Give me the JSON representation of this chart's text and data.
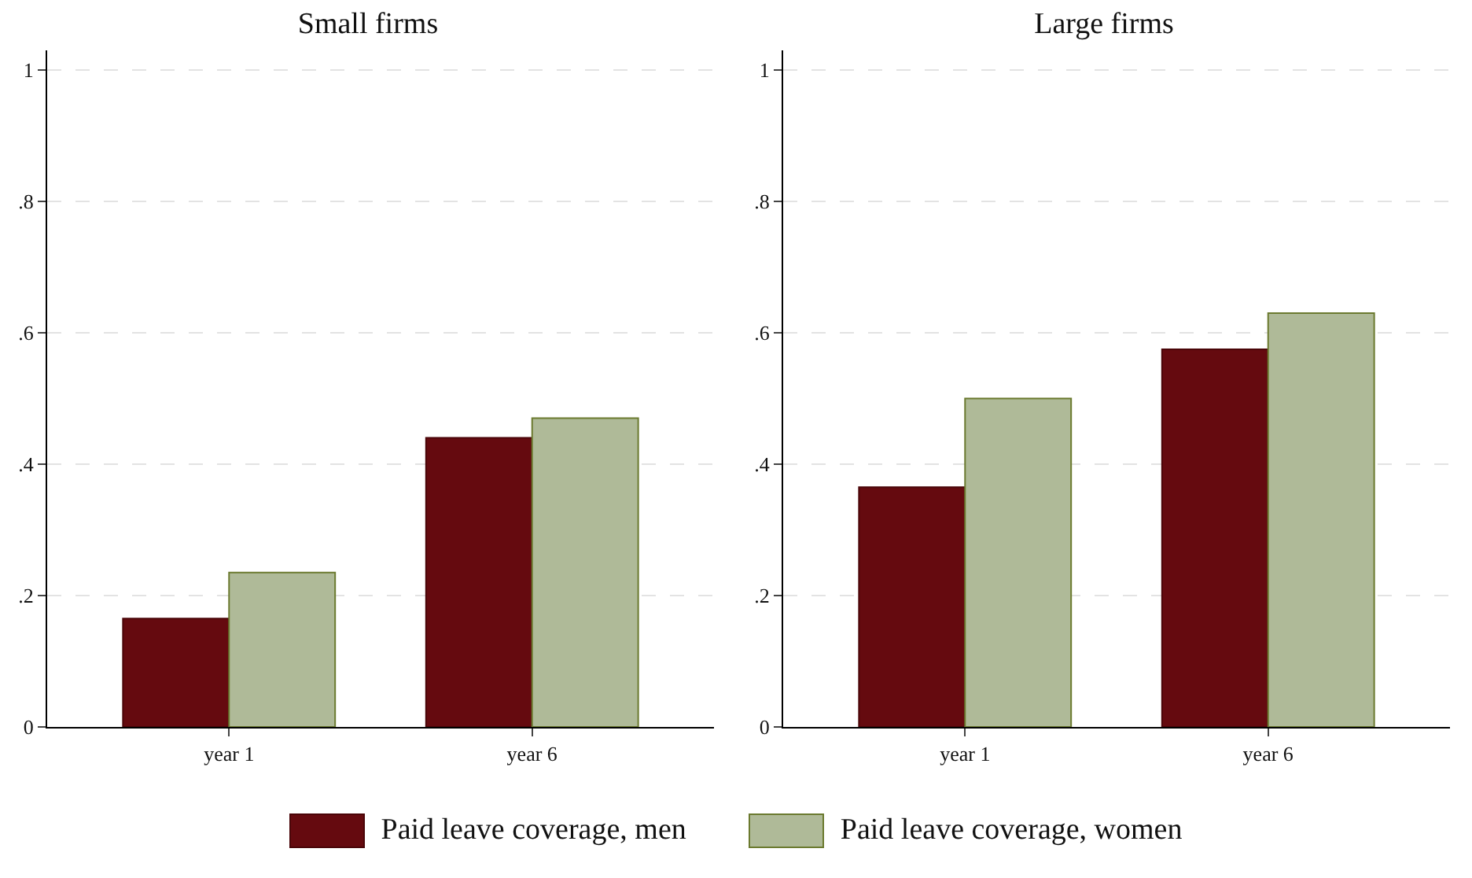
{
  "chart_data": [
    {
      "type": "bar",
      "title": "Small firms",
      "categories": [
        "year 1",
        "year 6"
      ],
      "series": [
        {
          "name": "Paid leave coverage, men",
          "color": "#650a0f",
          "values": [
            0.165,
            0.44
          ]
        },
        {
          "name": "Paid leave coverage, women",
          "color": "#afba98",
          "values": [
            0.235,
            0.47
          ]
        }
      ],
      "ylim": [
        0,
        1.03
      ],
      "yticks": [
        {
          "value": 0,
          "label": "0"
        },
        {
          "value": 0.2,
          "label": ".2"
        },
        {
          "value": 0.4,
          "label": ".4"
        },
        {
          "value": 0.6,
          "label": ".6"
        },
        {
          "value": 0.8,
          "label": ".8"
        },
        {
          "value": 1,
          "label": "1"
        }
      ],
      "grid": "y",
      "legend": "bottom"
    },
    {
      "type": "bar",
      "title": "Large firms",
      "categories": [
        "year 1",
        "year 6"
      ],
      "series": [
        {
          "name": "Paid leave coverage, men",
          "color": "#650a0f",
          "values": [
            0.365,
            0.575
          ]
        },
        {
          "name": "Paid leave coverage, women",
          "color": "#afba98",
          "values": [
            0.5,
            0.63
          ]
        }
      ],
      "ylim": [
        0,
        1.03
      ],
      "yticks": [
        {
          "value": 0,
          "label": "0"
        },
        {
          "value": 0.2,
          "label": ".2"
        },
        {
          "value": 0.4,
          "label": ".4"
        },
        {
          "value": 0.6,
          "label": ".6"
        },
        {
          "value": 0.8,
          "label": ".8"
        },
        {
          "value": 1,
          "label": "1"
        }
      ],
      "grid": "y",
      "legend": "bottom"
    }
  ]
}
